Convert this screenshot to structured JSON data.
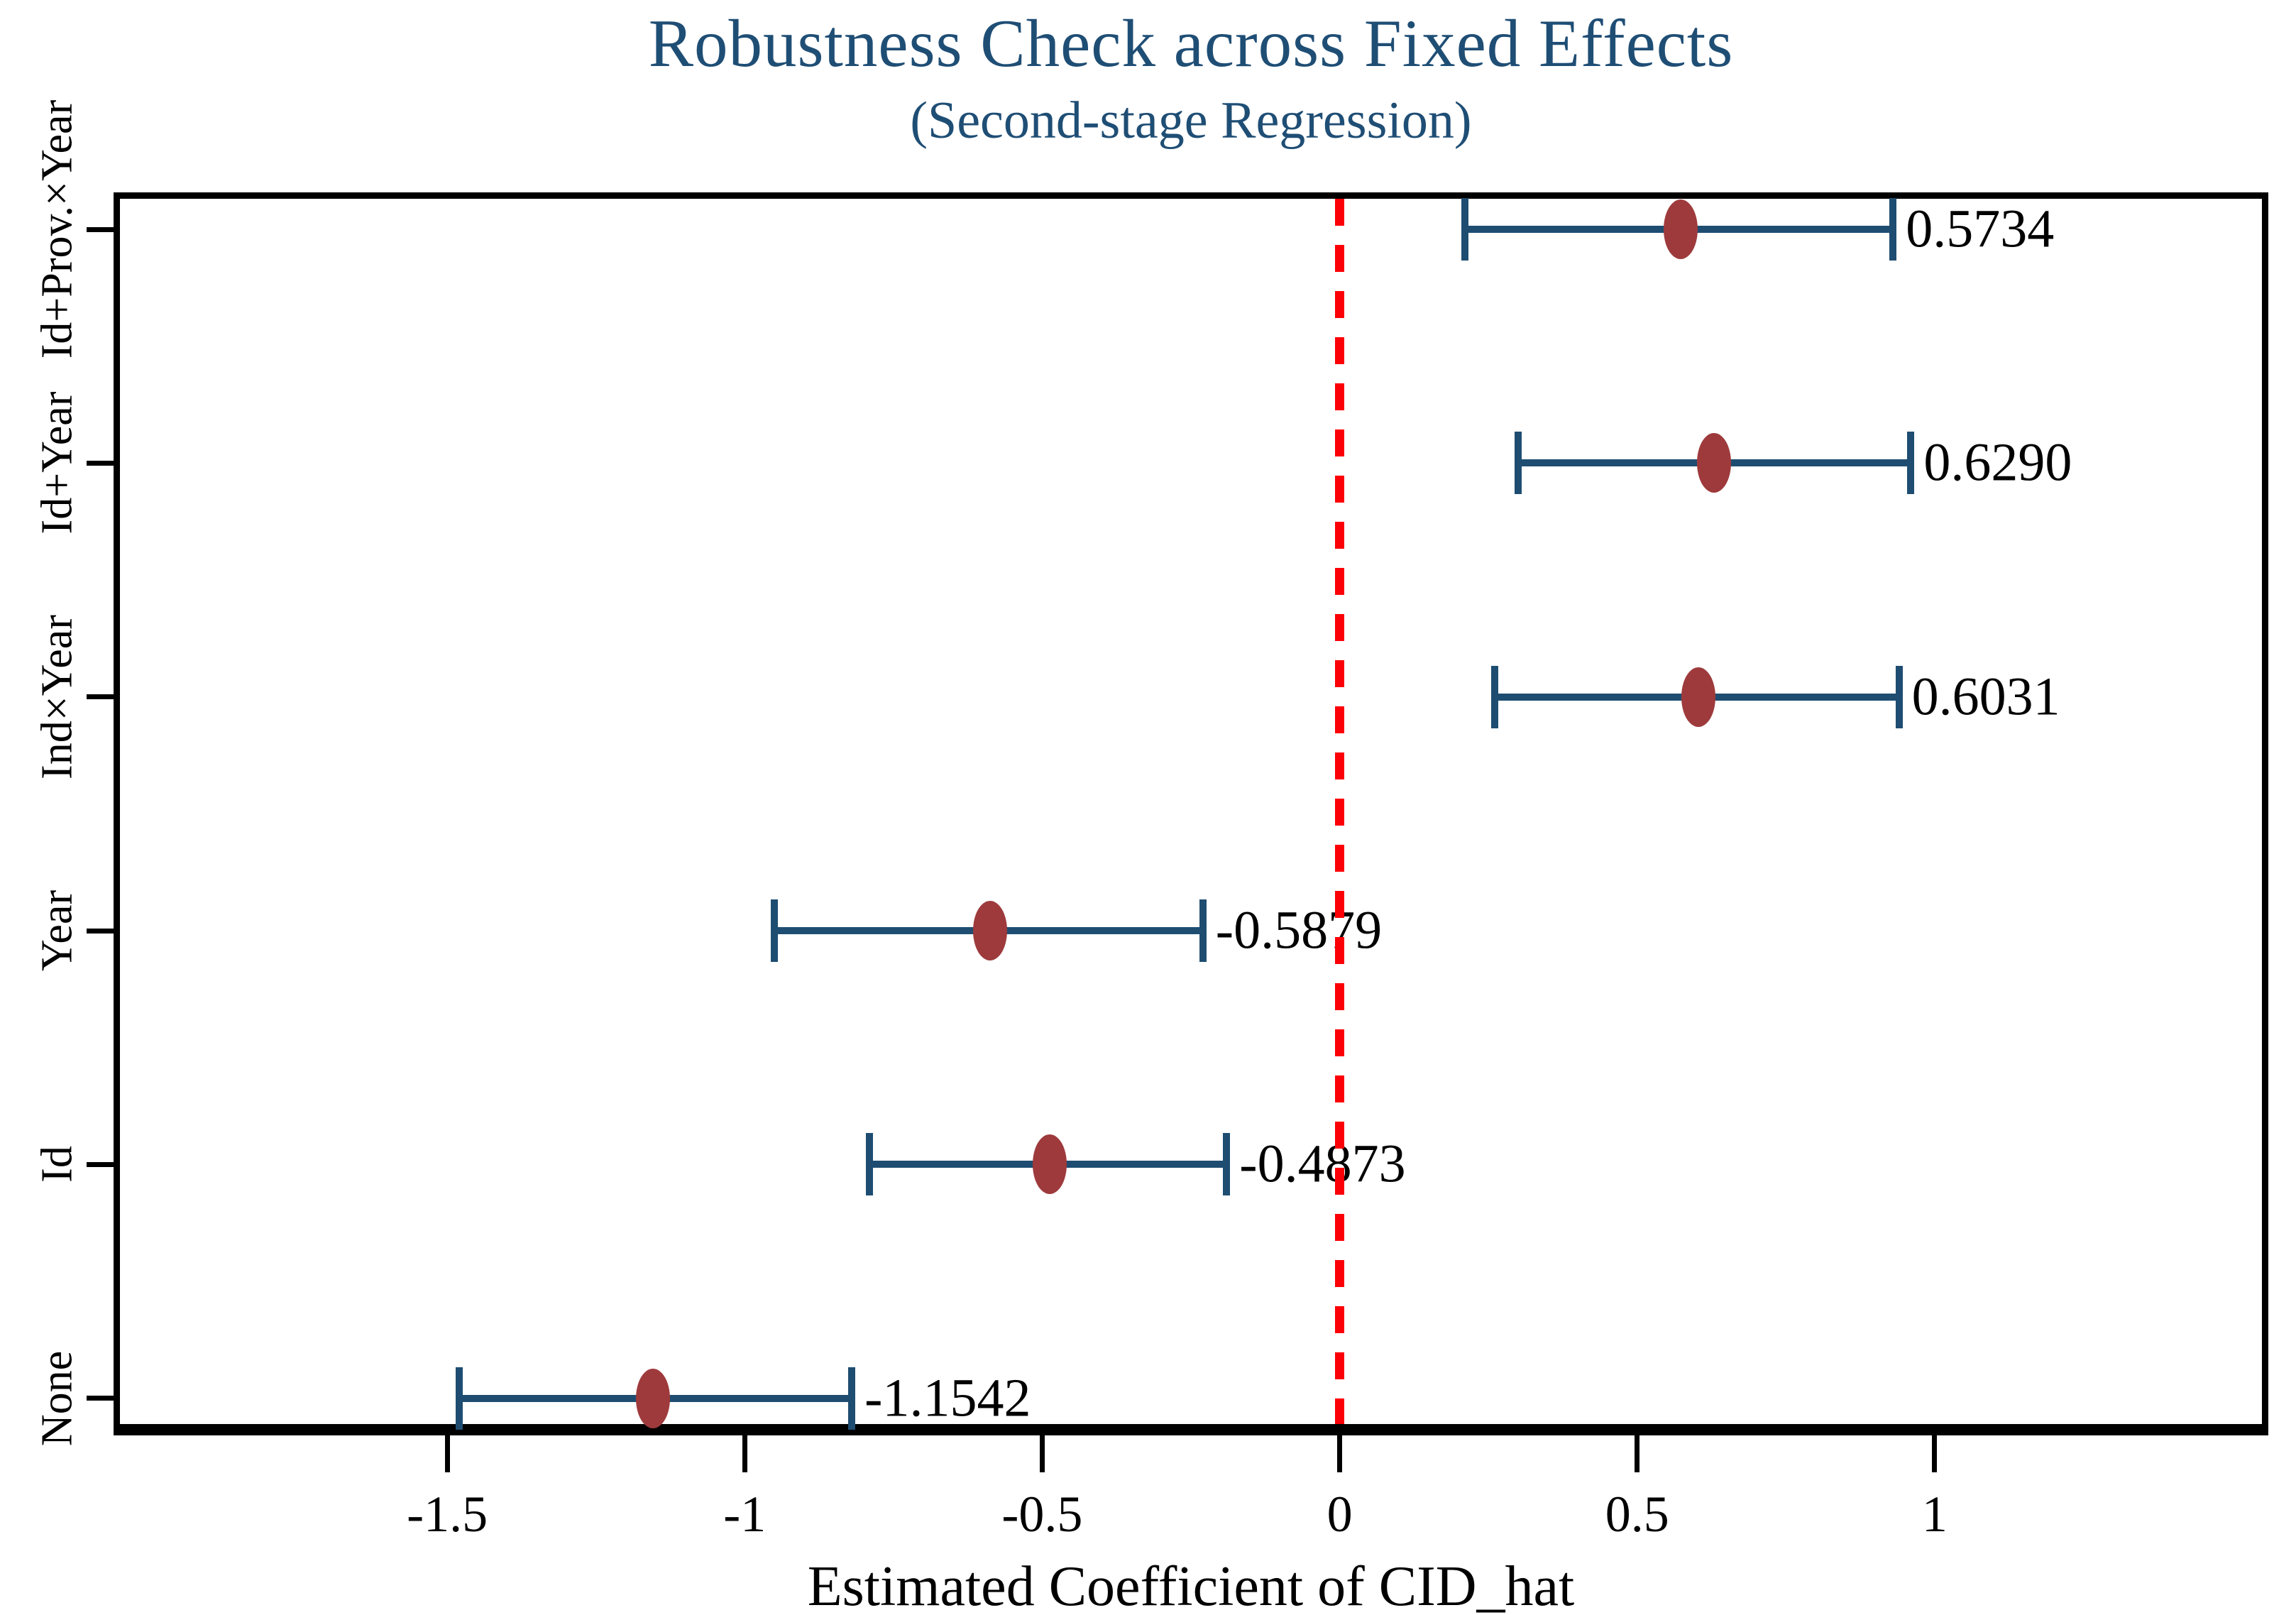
{
  "chart_data": {
    "type": "scatter",
    "variant": "dot-whisker-coefficient-plot",
    "title": "Robustness Check across Fixed Effects",
    "subtitle": "(Second-stage Regression)",
    "xlabel": "Estimated Coefficient of CID_hat",
    "ylabel": "",
    "xlim": [
      -2.05,
      1.55
    ],
    "xticks": {
      "values": [
        -1.5,
        -1,
        -0.5,
        0,
        0.5,
        1
      ],
      "labels": [
        "-1.5",
        "-1",
        "-0.5",
        "0",
        "0.5",
        "1"
      ]
    },
    "grid": false,
    "legend": "none",
    "zero_line": {
      "value": 0,
      "style": "dashed",
      "color": "#fb0007"
    },
    "categories": [
      "Id+Prov.×Year",
      "Id+Year",
      "Ind×Year",
      "Year",
      "Id",
      "None"
    ],
    "points": [
      {
        "category": "Id+Prov.×Year",
        "estimate": 0.5734,
        "value_label": "0.5734",
        "ci_low": 0.21,
        "ci_high": 0.93
      },
      {
        "category": "Id+Year",
        "estimate": 0.629,
        "value_label": "0.6290",
        "ci_low": 0.3,
        "ci_high": 0.96
      },
      {
        "category": "Ind×Year",
        "estimate": 0.6031,
        "value_label": "0.6031",
        "ci_low": 0.26,
        "ci_high": 0.94
      },
      {
        "category": "Year",
        "estimate": -0.5879,
        "value_label": "-0.5879",
        "ci_low": -0.95,
        "ci_high": -0.23
      },
      {
        "category": "Id",
        "estimate": -0.4873,
        "value_label": "-0.4873",
        "ci_low": -0.79,
        "ci_high": -0.19
      },
      {
        "category": "None",
        "estimate": -1.1542,
        "value_label": "-1.1542",
        "ci_low": -1.48,
        "ci_high": -0.82
      }
    ],
    "colors": {
      "marker": "#9e3a3c",
      "ci": "#1e4d71",
      "zero_line": "#fb0007",
      "title": "#1f4e75",
      "axis": "#000000"
    }
  }
}
